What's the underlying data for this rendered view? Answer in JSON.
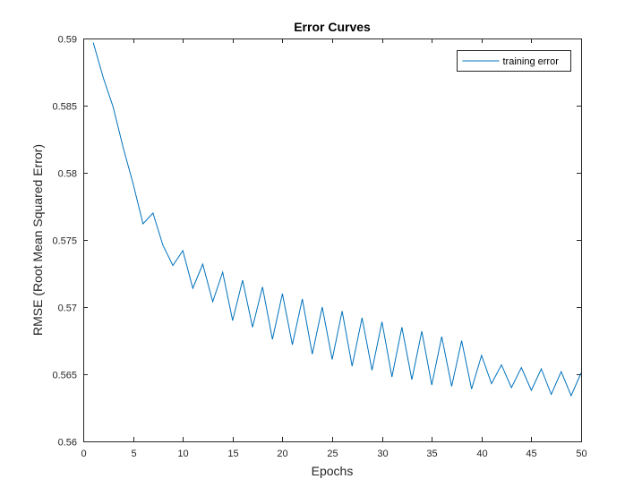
{
  "chart_data": {
    "type": "line",
    "title": "Error Curves",
    "xlabel": "Epochs",
    "ylabel": "RMSE (Root Mean Squared Error)",
    "xlim": [
      0,
      50
    ],
    "ylim": [
      0.56,
      0.59
    ],
    "xticks": [
      0,
      5,
      10,
      15,
      20,
      25,
      30,
      35,
      40,
      45,
      50
    ],
    "yticks": [
      0.56,
      0.565,
      0.57,
      0.575,
      0.58,
      0.585,
      0.59
    ],
    "xtick_labels": [
      "0",
      "5",
      "10",
      "15",
      "20",
      "25",
      "30",
      "35",
      "40",
      "45",
      "50"
    ],
    "ytick_labels": [
      "0.56",
      "0.565",
      "0.57",
      "0.575",
      "0.58",
      "0.585",
      "0.59"
    ],
    "grid": false,
    "legend_position": "top-right",
    "series": [
      {
        "name": "training error",
        "color": "#0072BD",
        "x": [
          1,
          2,
          3,
          4,
          5,
          6,
          7,
          8,
          9,
          10,
          11,
          12,
          13,
          14,
          15,
          16,
          17,
          18,
          19,
          20,
          21,
          22,
          23,
          24,
          25,
          26,
          27,
          28,
          29,
          30,
          31,
          32,
          33,
          34,
          35,
          36,
          37,
          38,
          39,
          40,
          41,
          42,
          43,
          44,
          45,
          46,
          47,
          48,
          49,
          50
        ],
        "y": [
          0.5897,
          0.5871,
          0.5849,
          0.5819,
          0.5792,
          0.5762,
          0.577,
          0.5746,
          0.5731,
          0.5742,
          0.5714,
          0.5732,
          0.5704,
          0.5726,
          0.569,
          0.572,
          0.5685,
          0.5715,
          0.5676,
          0.571,
          0.5672,
          0.5706,
          0.5665,
          0.57,
          0.5661,
          0.5697,
          0.5656,
          0.5692,
          0.5653,
          0.5689,
          0.5648,
          0.5685,
          0.5646,
          0.5682,
          0.5642,
          0.5678,
          0.5641,
          0.5675,
          0.5639,
          0.5664,
          0.5643,
          0.5657,
          0.564,
          0.5655,
          0.5638,
          0.5654,
          0.5635,
          0.5652,
          0.5634,
          0.5651
        ]
      }
    ]
  }
}
